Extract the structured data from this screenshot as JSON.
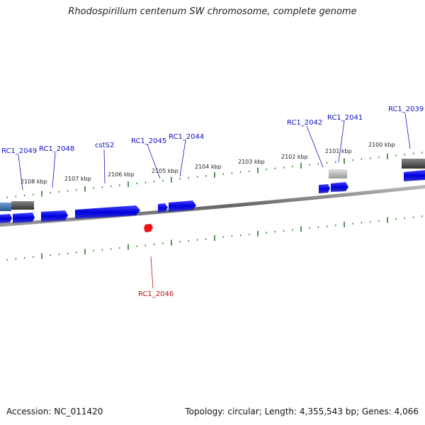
{
  "title": "Rhodospirillum centenum SW chromosome, complete genome",
  "footer": {
    "accession": "Accession: NC_011420",
    "summary": "Topology: circular; Length: 4,355,543 bp; Genes: 4,066"
  },
  "colors": {
    "forward_gene": "#1a1aee",
    "reverse_gene": "#ee1111",
    "tick": "#2a7a2a",
    "backbone": "#888888",
    "rna_dark": "#555555",
    "rna_light": "#bbbbbb"
  },
  "kbp_labels": [
    "2108 kbp",
    "2107 kbp",
    "2106 kbp",
    "2105 kbp",
    "2104 kbp",
    "2103 kbp",
    "2102 kbp",
    "2101 kbp",
    "2100 kbp"
  ],
  "gene_labels_forward": [
    "RC1_2049",
    "RC1_2048",
    "cstS2",
    "RC1_2045",
    "RC1_2044",
    "RC1_2042",
    "RC1_2041",
    "RC1_2039"
  ],
  "gene_labels_reverse": [
    "RC1_2046"
  ]
}
